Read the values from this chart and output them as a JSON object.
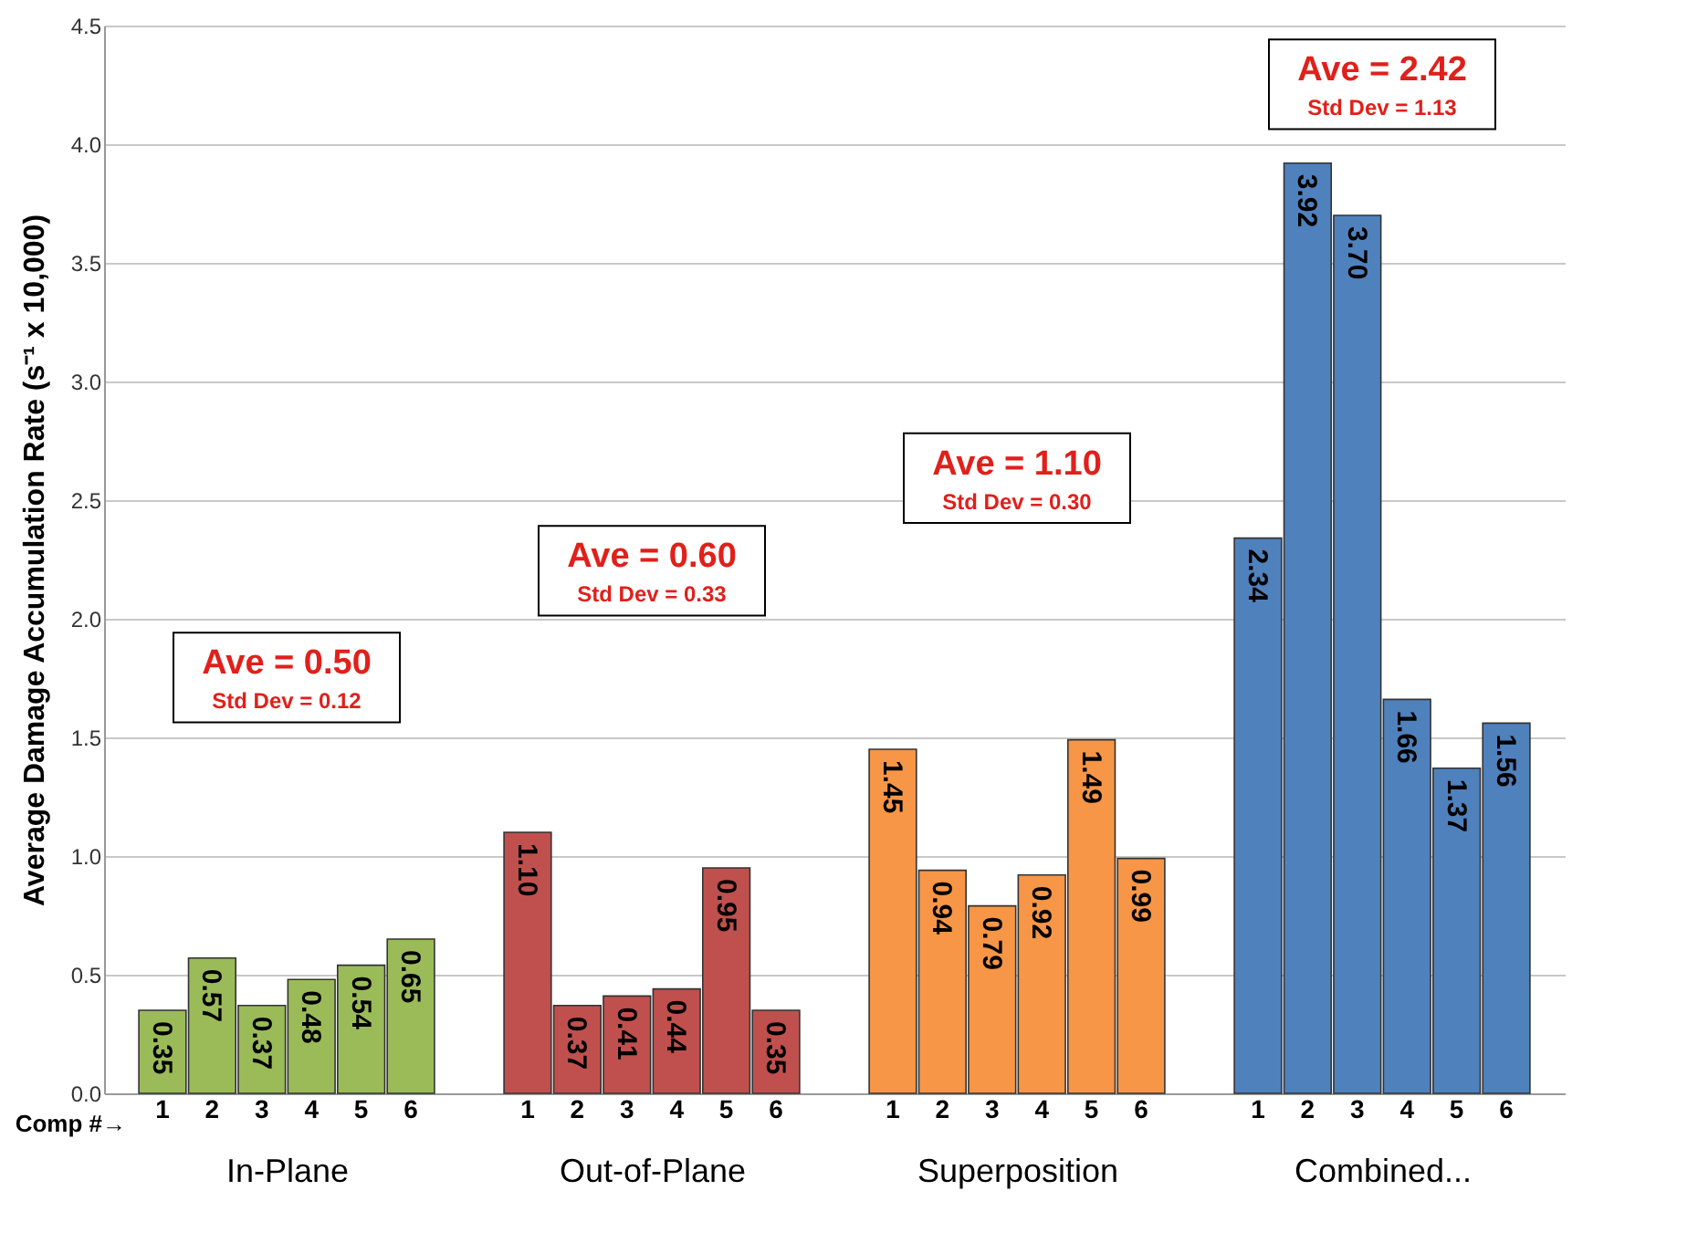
{
  "chart_data": [
    {
      "type": "bar",
      "xlabel": "In-Plane",
      "ylabel": "Average Damage Accumulation Rate (s⁻¹ x 10,000)",
      "categories": [
        "1",
        "2",
        "3",
        "4",
        "5",
        "6"
      ],
      "values": [
        0.35,
        0.57,
        0.37,
        0.48,
        0.54,
        0.65
      ],
      "value_labels": [
        "0.35",
        "0.57",
        "0.37",
        "0.48",
        "0.54",
        "0.65"
      ],
      "color": "#9bbb59",
      "grid": "y",
      "ylim": [
        0,
        4.5
      ],
      "yticks": [
        {
          "value": 0,
          "label": "0.0"
        },
        {
          "value": 0.5,
          "label": "0.5"
        },
        {
          "value": 1,
          "label": "1.0"
        },
        {
          "value": 1.5,
          "label": "1.5"
        },
        {
          "value": 2,
          "label": "2.0"
        },
        {
          "value": 2.5,
          "label": "2.5"
        },
        {
          "value": 3,
          "label": "3.0"
        },
        {
          "value": 3.5,
          "label": "3.5"
        },
        {
          "value": 4,
          "label": "4.0"
        },
        {
          "value": 4.5,
          "label": "4.5"
        }
      ],
      "annotations": [
        "Ave = 0.50",
        "Std Dev = 0.12",
        "Comp #→"
      ]
    },
    {
      "type": "bar",
      "xlabel": "Out-of-Plane",
      "categories": [
        "1",
        "2",
        "3",
        "4",
        "5",
        "6"
      ],
      "values": [
        1.1,
        0.37,
        0.41,
        0.44,
        0.95,
        0.35
      ],
      "value_labels": [
        "1.10",
        "0.37",
        "0.41",
        "0.44",
        "0.95",
        "0.35"
      ],
      "color": "#c0504d",
      "grid": "y",
      "tick_labels": "x",
      "ylim": [
        0,
        4.5
      ],
      "yticks": [
        0,
        0.5,
        1,
        1.5,
        2,
        2.5,
        3,
        3.5,
        4,
        4.5
      ],
      "annotations": [
        "Ave = 0.60",
        "Std Dev = 0.33"
      ]
    },
    {
      "type": "bar",
      "xlabel": "Superposition",
      "categories": [
        "1",
        "2",
        "3",
        "4",
        "5",
        "6"
      ],
      "values": [
        1.45,
        0.94,
        0.79,
        0.92,
        1.49,
        0.99
      ],
      "value_labels": [
        "1.45",
        "0.94",
        "0.79",
        "0.92",
        "1.49",
        "0.99"
      ],
      "color": "#f79646",
      "grid": "y",
      "tick_labels": "x",
      "ylim": [
        0,
        4.5
      ],
      "yticks": [
        0,
        0.5,
        1,
        1.5,
        2,
        2.5,
        3,
        3.5,
        4,
        4.5
      ],
      "annotations": [
        "Ave = 1.10",
        "Std Dev = 0.30"
      ]
    },
    {
      "type": "bar",
      "xlabel": "Combined...",
      "categories": [
        "1",
        "2",
        "3",
        "4",
        "5",
        "6"
      ],
      "values": [
        2.34,
        3.92,
        3.7,
        1.66,
        1.37,
        1.56
      ],
      "value_labels": [
        "2.34",
        "3.92",
        "3.70",
        "1.66",
        "1.37",
        "1.56"
      ],
      "color": "#4f81bd",
      "grid": "y",
      "tick_labels": "x",
      "ylim": [
        0,
        4.5
      ],
      "yticks": [
        0,
        0.5,
        1,
        1.5,
        2,
        2.5,
        3,
        3.5,
        4,
        4.5
      ],
      "annotations": [
        "Ave = 2.42",
        "Std Dev = 1.13"
      ]
    }
  ]
}
